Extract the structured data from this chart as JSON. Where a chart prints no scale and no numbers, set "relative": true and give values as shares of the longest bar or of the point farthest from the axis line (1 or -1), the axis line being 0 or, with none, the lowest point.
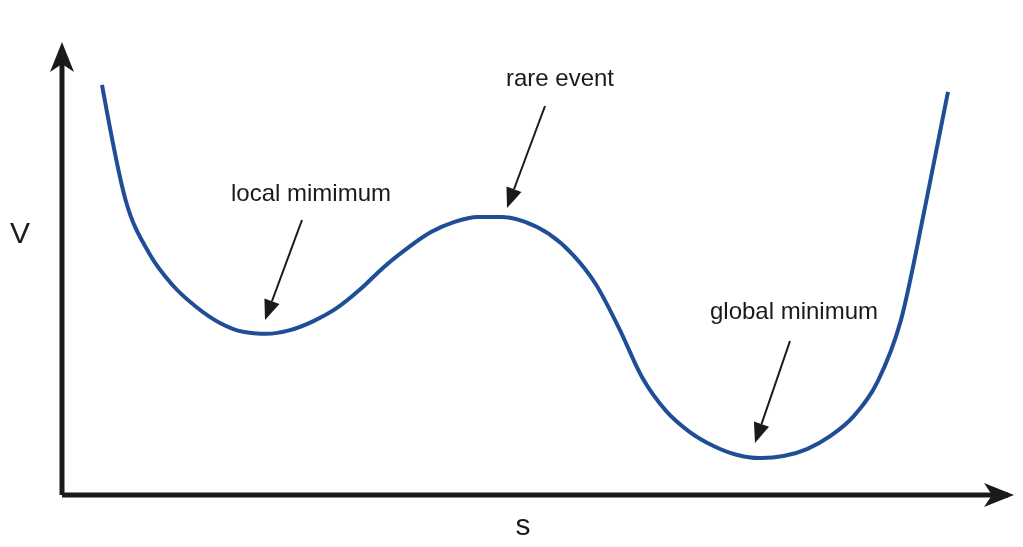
{
  "chart_data": {
    "type": "line",
    "relative": true,
    "xlabel": "s",
    "ylabel": "V",
    "categories": [
      null,
      null,
      null,
      null,
      null,
      null,
      null,
      null,
      null,
      null,
      null,
      null,
      null,
      null,
      null,
      null,
      null,
      null,
      null,
      null,
      null,
      null,
      null,
      null,
      null,
      null,
      null,
      null,
      null,
      null,
      null,
      null,
      null,
      null,
      null,
      null,
      null
    ],
    "series": [
      {
        "color": "#1f4e96",
        "values": [
          1.0,
          0.72,
          0.59,
          0.512,
          0.459,
          0.42,
          0.398,
          0.393,
          0.402,
          0.424,
          0.456,
          0.502,
          0.556,
          0.602,
          0.641,
          0.666,
          0.678,
          0.678,
          0.666,
          0.637,
          0.588,
          0.515,
          0.407,
          0.285,
          0.205,
          0.154,
          0.12,
          0.098,
          0.09,
          0.095,
          0.112,
          0.144,
          0.193,
          0.276,
          0.427,
          0.695,
          0.983
        ]
      }
    ],
    "annotations": [
      "local mimimum",
      "rare event",
      "global minimum"
    ],
    "grid": false,
    "legend": false,
    "marker": "none",
    "line_style": "solid"
  }
}
